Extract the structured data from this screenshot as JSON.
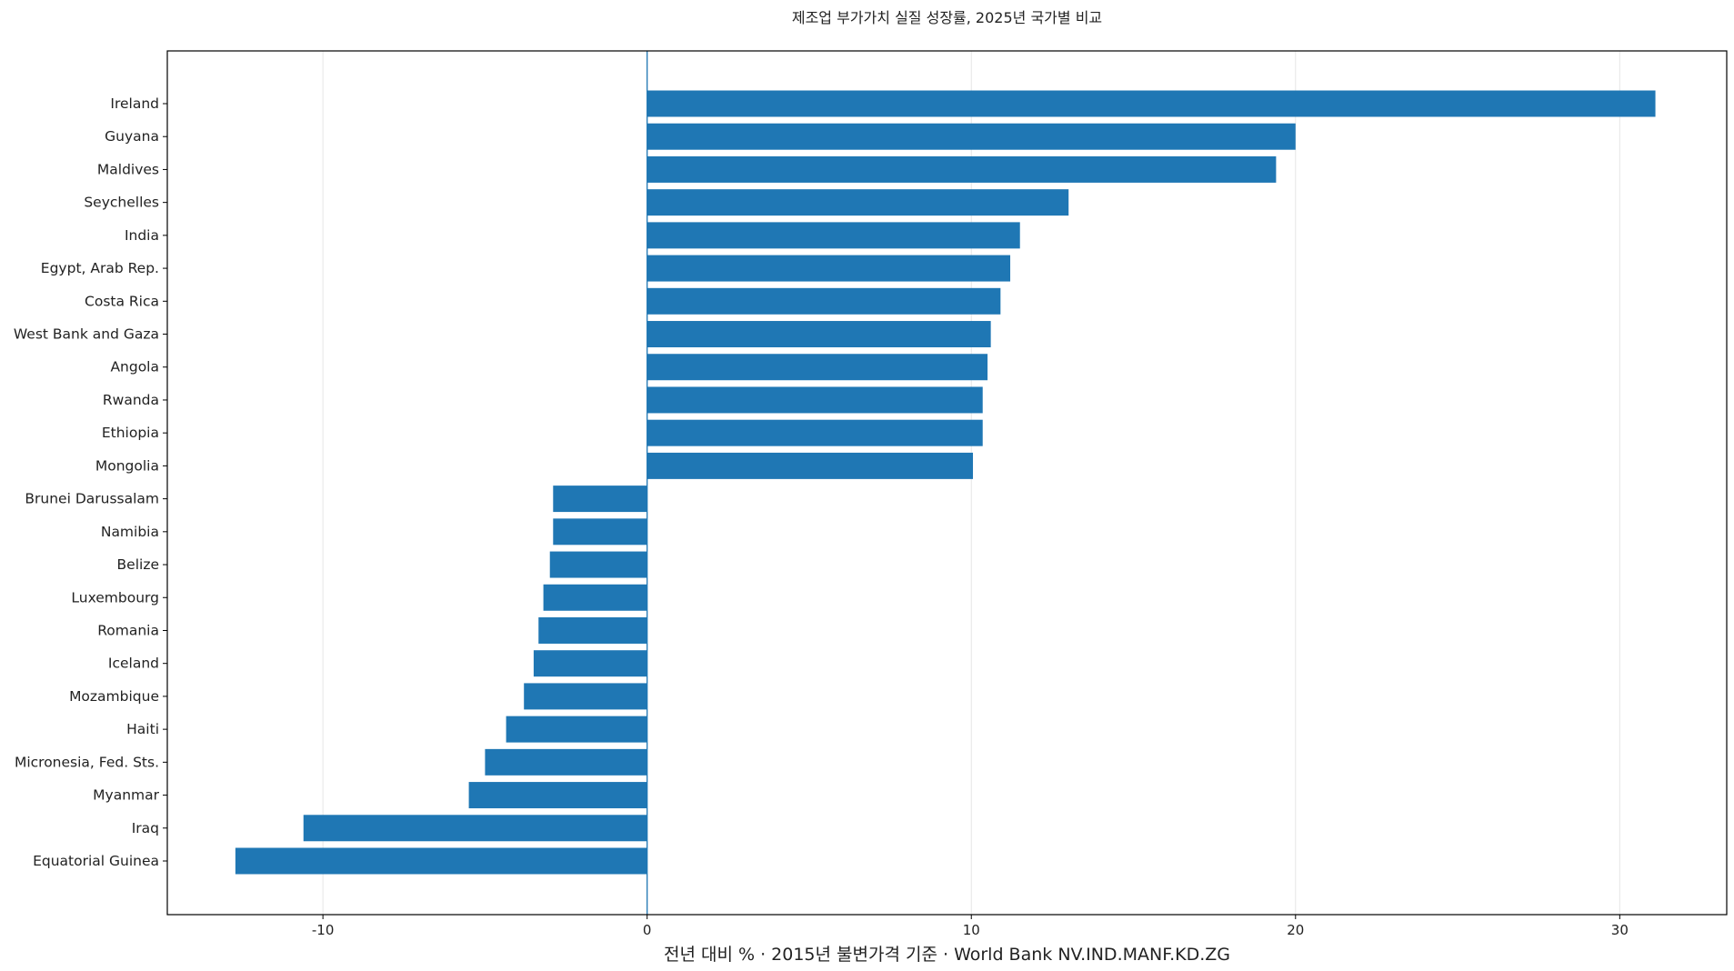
{
  "chart_data": {
    "type": "bar",
    "orientation": "horizontal",
    "title": "제조업 부가가치 실질 성장률, 2025년 국가별 비교",
    "xlabel": "전년 대비 % · 2015년 불변가격 기준 · World Bank NV.IND.MANF.KD.ZG",
    "ylabel": "",
    "xlim": [
      -14.8,
      33.3
    ],
    "xticks": [
      -10,
      0,
      10,
      20,
      30
    ],
    "xtick_labels": [
      "-10",
      "0",
      "10",
      "20",
      "30"
    ],
    "grid": "vertical",
    "bar_color": "#1f77b4",
    "categories": [
      "Ireland",
      "Guyana",
      "Maldives",
      "Seychelles",
      "India",
      "Egypt, Arab Rep.",
      "Costa Rica",
      "West Bank and Gaza",
      "Angola",
      "Rwanda",
      "Ethiopia",
      "Mongolia",
      "Brunei Darussalam",
      "Namibia",
      "Belize",
      "Luxembourg",
      "Romania",
      "Iceland",
      "Mozambique",
      "Haiti",
      "Micronesia, Fed. Sts.",
      "Myanmar",
      "Iraq",
      "Equatorial Guinea"
    ],
    "values": [
      31.1,
      20.0,
      19.4,
      13.0,
      11.5,
      11.2,
      10.9,
      10.6,
      10.5,
      10.35,
      10.35,
      10.05,
      -2.9,
      -2.9,
      -3.0,
      -3.2,
      -3.35,
      -3.5,
      -3.8,
      -4.35,
      -5.0,
      -5.5,
      -10.6,
      -12.7
    ]
  }
}
